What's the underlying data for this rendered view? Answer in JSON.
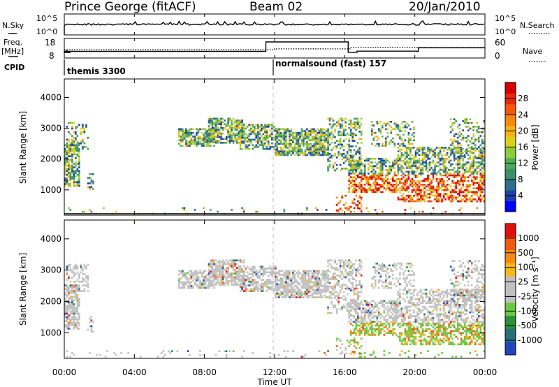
{
  "header": {
    "station": "Prince George (fitACF)",
    "beam": "Beam 02",
    "date": "20/Jan/2010"
  },
  "panels": {
    "noise": {
      "left_label": "N.Sky",
      "right_label": "N.Search",
      "left_ticks": [
        "10^5",
        "10^0"
      ],
      "right_ticks": [
        "10^5",
        "10^0"
      ]
    },
    "freq": {
      "left_label_line1": "Freq.",
      "left_label_line2": "[MHz]",
      "right_label": "Nave",
      "left_ticks": [
        "18",
        "8"
      ],
      "right_ticks": [
        "60",
        "0"
      ]
    },
    "cpid": {
      "label": "CPID",
      "segments": [
        {
          "name": "themis 3300",
          "start_hour": 0
        },
        {
          "name": "normalsound (fast) 157",
          "start_hour": 12
        }
      ]
    }
  },
  "time_axis": {
    "label": "Time UT",
    "ticks": [
      "00:00",
      "04:00",
      "08:00",
      "12:00",
      "16:00",
      "20:00",
      "00:00"
    ],
    "tick_hours": [
      0,
      4,
      8,
      12,
      16,
      20,
      24
    ],
    "range_hours": [
      0,
      24
    ]
  },
  "chart_data": [
    {
      "type": "heatmap",
      "name": "power",
      "ylabel": "Slant Range [km]",
      "yticks": [
        1000,
        2000,
        3000,
        4000
      ],
      "ylim": [
        180,
        4600
      ],
      "colorbar_label": "Power [dB]",
      "colorbar_ticks": [
        "28",
        "24",
        "20",
        "16",
        "12",
        "8",
        "4"
      ],
      "colors": [
        "#0000ff",
        "#1f3fa8",
        "#2e6e8a",
        "#3c8f6a",
        "#51ab5a",
        "#8ccc3c",
        "#d9d11f",
        "#f5b014",
        "#f48a0d",
        "#f05a0a",
        "#e8280a",
        "#d40000"
      ]
    },
    {
      "type": "heatmap",
      "name": "velocity",
      "ylabel": "Slant Range [km]",
      "yticks": [
        1000,
        2000,
        3000,
        4000
      ],
      "ylim": [
        180,
        4600
      ],
      "colorbar_label": "Velocity [m s⁻¹]",
      "colorbar_ticks": [
        "1000",
        "500",
        "100",
        "25",
        "-25",
        "-100",
        "-500",
        "-1000"
      ],
      "colors": [
        "#2244bb",
        "#2a6e78",
        "#2f8f3a",
        "#6cc844",
        "#c0c0c0",
        "#c0c0c0",
        "#f5b81a",
        "#f28a14",
        "#ee5a10",
        "#e01010"
      ]
    }
  ]
}
